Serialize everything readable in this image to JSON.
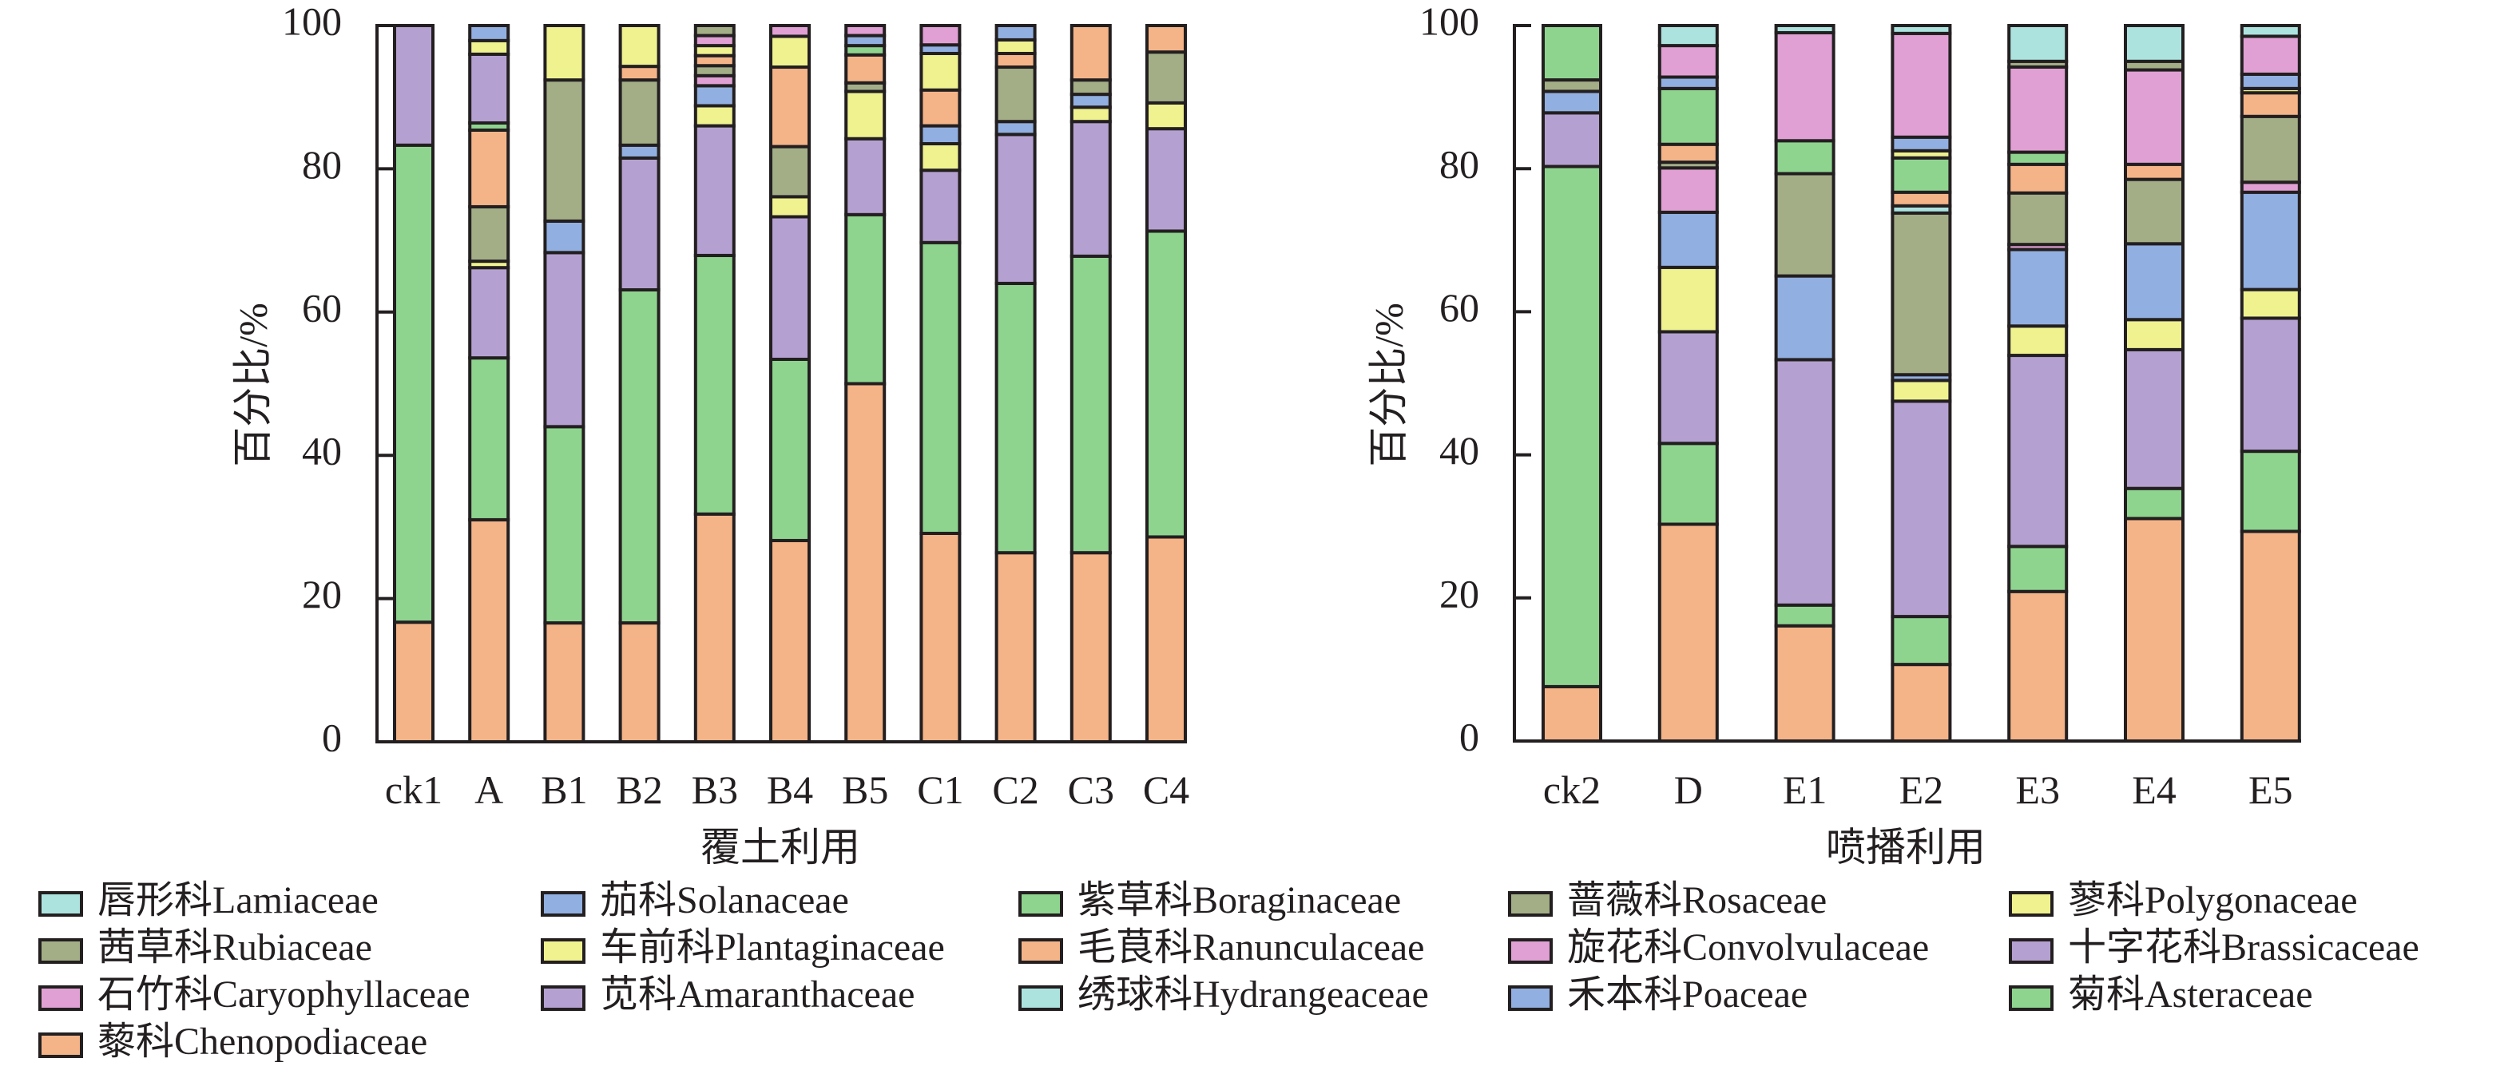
{
  "families": {
    "Lamiaceae": {
      "label": "唇形科Lamiaceae",
      "color": "#ace3df"
    },
    "Solanaceae": {
      "label": "茄科Solanaceae",
      "color": "#91afe0"
    },
    "Boraginaceae": {
      "label": "紫草科Boraginaceae",
      "color": "#8ed48f"
    },
    "Rosaceae": {
      "label": "蔷薇科Rosaceae",
      "color": "#a3ae87"
    },
    "Polygonaceae": {
      "label": "蓼科Polygonaceae",
      "color": "#eff28f"
    },
    "Rubiaceae": {
      "label": "茜草科Rubiaceae",
      "color": "#a3ae87"
    },
    "Plantaginaceae": {
      "label": "车前科Plantaginaceae",
      "color": "#eff28f"
    },
    "Ranunculaceae": {
      "label": "毛茛科Ranunculaceae",
      "color": "#f4b488"
    },
    "Convolvulaceae": {
      "label": "旋花科Convolvulaceae",
      "color": "#e0a0d4"
    },
    "Brassicaceae": {
      "label": "十字花科Brassicaceae",
      "color": "#b5a1d1"
    },
    "Caryophyllaceae": {
      "label": "石竹科Caryophyllaceae",
      "color": "#e0a0d4"
    },
    "Amaranthaceae": {
      "label": "苋科Amaranthaceae",
      "color": "#b5a1d1"
    },
    "Hydrangeaceae": {
      "label": "绣球科Hydrangeaceae",
      "color": "#ace3df"
    },
    "Poaceae": {
      "label": "禾本科Poaceae",
      "color": "#91afe0"
    },
    "Asteraceae": {
      "label": "菊科Asteraceae",
      "color": "#8ed48f"
    },
    "Chenopodiaceae": {
      "label": "藜科Chenopodiaceae",
      "color": "#f4b488"
    }
  },
  "legend": {
    "rows": [
      [
        "Lamiaceae",
        "Solanaceae",
        "Boraginaceae",
        "Rosaceae",
        "Polygonaceae"
      ],
      [
        "Rubiaceae",
        "Plantaginaceae",
        "Ranunculaceae",
        "Convolvulaceae",
        "Brassicaceae"
      ],
      [
        "Caryophyllaceae",
        "Amaranthaceae",
        "Hydrangeaceae",
        "Poaceae",
        "Asteraceae"
      ],
      [
        "Chenopodiaceae"
      ]
    ]
  },
  "chart_data": [
    {
      "type": "bar",
      "stacked": true,
      "xlabel": "覆土利用",
      "ylabel": "百分比/%",
      "ylim": [
        0,
        100
      ],
      "yticks": [
        "0",
        "20",
        "40",
        "60",
        "80",
        "100"
      ],
      "categories": [
        "ck1",
        "A",
        "B1",
        "B2",
        "B3",
        "B4",
        "B5",
        "C1",
        "C2",
        "C3",
        "C4"
      ],
      "stacks": [
        [
          [
            "Chenopodiaceae",
            16.7
          ],
          [
            "Asteraceae",
            66.6
          ],
          [
            "Amaranthaceae",
            16.7
          ]
        ],
        [
          [
            "Chenopodiaceae",
            31.0
          ],
          [
            "Asteraceae",
            22.6
          ],
          [
            "Amaranthaceae",
            12.6
          ],
          [
            "Plantaginaceae",
            0.9
          ],
          [
            "Rubiaceae",
            7.6
          ],
          [
            "Ranunculaceae",
            10.7
          ],
          [
            "Boraginaceae",
            1.0
          ],
          [
            "Brassicaceae",
            9.6
          ],
          [
            "Polygonaceae",
            1.9
          ],
          [
            "Solanaceae",
            2.1
          ]
        ],
        [
          [
            "Chenopodiaceae",
            16.6
          ],
          [
            "Asteraceae",
            27.4
          ],
          [
            "Amaranthaceae",
            24.3
          ],
          [
            "Poaceae",
            4.4
          ],
          [
            "Rubiaceae",
            19.7
          ],
          [
            "Polygonaceae",
            7.6
          ]
        ],
        [
          [
            "Chenopodiaceae",
            16.6
          ],
          [
            "Asteraceae",
            46.5
          ],
          [
            "Amaranthaceae",
            18.4
          ],
          [
            "Poaceae",
            1.8
          ],
          [
            "Rubiaceae",
            9.1
          ],
          [
            "Ranunculaceae",
            1.9
          ],
          [
            "Polygonaceae",
            5.7
          ]
        ],
        [
          [
            "Chenopodiaceae",
            31.8
          ],
          [
            "Asteraceae",
            36.1
          ],
          [
            "Amaranthaceae",
            18.1
          ],
          [
            "Plantaginaceae",
            2.8
          ],
          [
            "Poaceae",
            2.8
          ],
          [
            "Caryophyllaceae",
            1.4
          ],
          [
            "Rubiaceae",
            1.4
          ],
          [
            "Ranunculaceae",
            1.4
          ],
          [
            "Polygonaceae",
            1.4
          ],
          [
            "Convolvulaceae",
            1.4
          ],
          [
            "Rosaceae",
            1.4
          ]
        ],
        [
          [
            "Chenopodiaceae",
            28.1
          ],
          [
            "Asteraceae",
            25.3
          ],
          [
            "Amaranthaceae",
            19.9
          ],
          [
            "Plantaginaceae",
            2.8
          ],
          [
            "Rubiaceae",
            7.0
          ],
          [
            "Ranunculaceae",
            11.1
          ],
          [
            "Polygonaceae",
            4.3
          ],
          [
            "Convolvulaceae",
            1.5
          ]
        ],
        [
          [
            "Chenopodiaceae",
            50.0
          ],
          [
            "Asteraceae",
            23.6
          ],
          [
            "Amaranthaceae",
            10.6
          ],
          [
            "Plantaginaceae",
            6.6
          ],
          [
            "Rubiaceae",
            1.2
          ],
          [
            "Ranunculaceae",
            3.9
          ],
          [
            "Boraginaceae",
            1.3
          ],
          [
            "Solanaceae",
            1.4
          ],
          [
            "Convolvulaceae",
            1.4
          ]
        ],
        [
          [
            "Chenopodiaceae",
            29.1
          ],
          [
            "Asteraceae",
            40.6
          ],
          [
            "Amaranthaceae",
            10.1
          ],
          [
            "Plantaginaceae",
            3.7
          ],
          [
            "Poaceae",
            2.5
          ],
          [
            "Ranunculaceae",
            5.0
          ],
          [
            "Polygonaceae",
            5.1
          ],
          [
            "Solanaceae",
            1.2
          ],
          [
            "Convolvulaceae",
            2.7
          ]
        ],
        [
          [
            "Chenopodiaceae",
            26.4
          ],
          [
            "Asteraceae",
            37.6
          ],
          [
            "Amaranthaceae",
            20.8
          ],
          [
            "Poaceae",
            1.8
          ],
          [
            "Rubiaceae",
            7.6
          ],
          [
            "Ranunculaceae",
            1.9
          ],
          [
            "Polygonaceae",
            1.9
          ],
          [
            "Solanaceae",
            2.0
          ]
        ],
        [
          [
            "Chenopodiaceae",
            26.4
          ],
          [
            "Asteraceae",
            41.4
          ],
          [
            "Amaranthaceae",
            18.8
          ],
          [
            "Plantaginaceae",
            2.0
          ],
          [
            "Poaceae",
            1.8
          ],
          [
            "Rubiaceae",
            2.0
          ],
          [
            "Ranunculaceae",
            7.6
          ]
        ],
        [
          [
            "Chenopodiaceae",
            28.6
          ],
          [
            "Asteraceae",
            42.7
          ],
          [
            "Amaranthaceae",
            14.3
          ],
          [
            "Plantaginaceae",
            3.6
          ],
          [
            "Rubiaceae",
            7.1
          ],
          [
            "Ranunculaceae",
            3.7
          ]
        ]
      ]
    },
    {
      "type": "bar",
      "stacked": true,
      "xlabel": "喷播利用",
      "ylabel": "百分比/%",
      "ylim": [
        0,
        100
      ],
      "yticks": [
        "0",
        "20",
        "40",
        "60",
        "80",
        "100"
      ],
      "categories": [
        "ck2",
        "D",
        "E1",
        "E2",
        "E3",
        "E4",
        "E5"
      ],
      "stacks": [
        [
          [
            "Chenopodiaceae",
            7.6
          ],
          [
            "Asteraceae",
            72.7
          ],
          [
            "Amaranthaceae",
            7.5
          ],
          [
            "Poaceae",
            3.0
          ],
          [
            "Rubiaceae",
            1.6
          ],
          [
            "Boraginaceae",
            7.6
          ]
        ],
        [
          [
            "Chenopodiaceae",
            30.3
          ],
          [
            "Asteraceae",
            11.3
          ],
          [
            "Amaranthaceae",
            15.6
          ],
          [
            "Plantaginaceae",
            9.0
          ],
          [
            "Poaceae",
            7.7
          ],
          [
            "Caryophyllaceae",
            6.2
          ],
          [
            "Rubiaceae",
            0.8
          ],
          [
            "Ranunculaceae",
            2.5
          ],
          [
            "Boraginaceae",
            7.8
          ],
          [
            "Solanaceae",
            1.6
          ],
          [
            "Convolvulaceae",
            4.4
          ],
          [
            "Lamiaceae",
            2.8
          ]
        ],
        [
          [
            "Chenopodiaceae",
            16.1
          ],
          [
            "Asteraceae",
            2.9
          ],
          [
            "Amaranthaceae",
            34.3
          ],
          [
            "Poaceae",
            11.7
          ],
          [
            "Rubiaceae",
            14.3
          ],
          [
            "Boraginaceae",
            4.6
          ],
          [
            "Convolvulaceae",
            15.1
          ],
          [
            "Lamiaceae",
            1.0
          ]
        ],
        [
          [
            "Chenopodiaceae",
            10.7
          ],
          [
            "Asteraceae",
            6.7
          ],
          [
            "Amaranthaceae",
            30.1
          ],
          [
            "Plantaginaceae",
            2.9
          ],
          [
            "Poaceae",
            0.8
          ],
          [
            "Rubiaceae",
            22.6
          ],
          [
            "Hydrangeaceae",
            1.0
          ],
          [
            "Ranunculaceae",
            1.9
          ],
          [
            "Boraginaceae",
            4.8
          ],
          [
            "Polygonaceae",
            1.0
          ],
          [
            "Solanaceae",
            1.9
          ],
          [
            "Convolvulaceae",
            14.5
          ],
          [
            "Lamiaceae",
            1.1
          ]
        ],
        [
          [
            "Chenopodiaceae",
            20.9
          ],
          [
            "Asteraceae",
            6.3
          ],
          [
            "Amaranthaceae",
            26.7
          ],
          [
            "Plantaginaceae",
            4.1
          ],
          [
            "Poaceae",
            10.7
          ],
          [
            "Caryophyllaceae",
            0.7
          ],
          [
            "Rubiaceae",
            7.2
          ],
          [
            "Ranunculaceae",
            4.0
          ],
          [
            "Boraginaceae",
            1.7
          ],
          [
            "Convolvulaceae",
            11.9
          ],
          [
            "Rosaceae",
            0.8
          ],
          [
            "Lamiaceae",
            5.0
          ]
        ],
        [
          [
            "Chenopodiaceae",
            31.1
          ],
          [
            "Asteraceae",
            4.2
          ],
          [
            "Amaranthaceae",
            19.4
          ],
          [
            "Plantaginaceae",
            4.2
          ],
          [
            "Poaceae",
            10.6
          ],
          [
            "Rubiaceae",
            9.0
          ],
          [
            "Ranunculaceae",
            2.1
          ],
          [
            "Convolvulaceae",
            13.2
          ],
          [
            "Rosaceae",
            1.2
          ],
          [
            "Lamiaceae",
            5.0
          ]
        ],
        [
          [
            "Chenopodiaceae",
            29.3
          ],
          [
            "Asteraceae",
            11.2
          ],
          [
            "Amaranthaceae",
            18.6
          ],
          [
            "Plantaginaceae",
            4.0
          ],
          [
            "Poaceae",
            13.6
          ],
          [
            "Caryophyllaceae",
            1.4
          ],
          [
            "Rubiaceae",
            9.2
          ],
          [
            "Ranunculaceae",
            3.3
          ],
          [
            "Polygonaceae",
            0.6
          ],
          [
            "Solanaceae",
            2.0
          ],
          [
            "Convolvulaceae",
            5.3
          ],
          [
            "Lamiaceae",
            1.5
          ]
        ]
      ]
    }
  ]
}
